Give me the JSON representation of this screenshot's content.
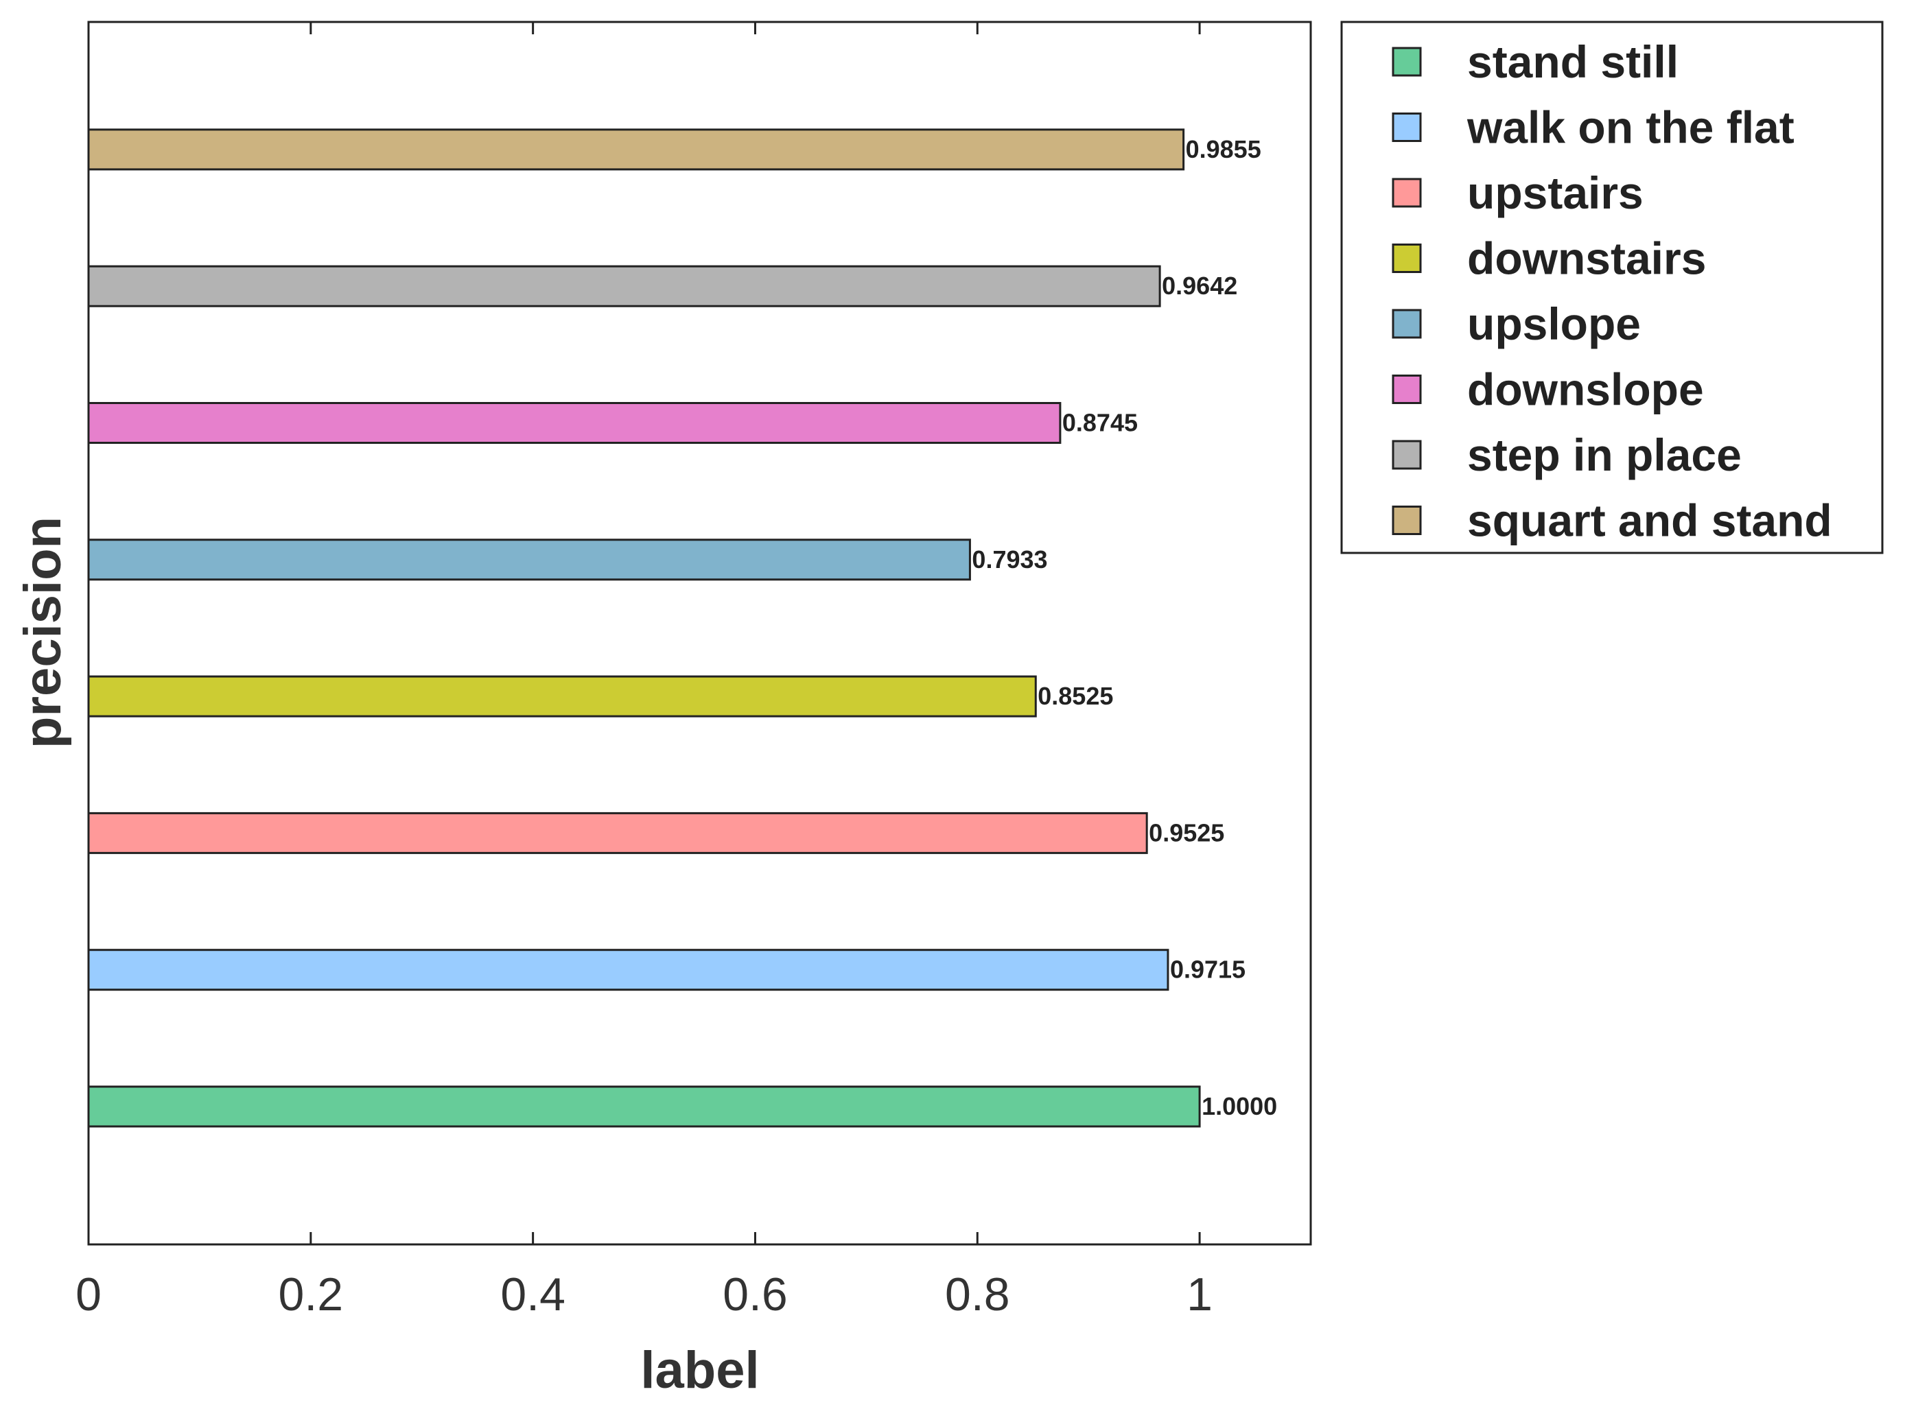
{
  "chart_data": {
    "type": "bar",
    "orientation": "horizontal",
    "title": "",
    "xlabel": "label",
    "ylabel": "precision",
    "xlim": [
      0,
      1.1
    ],
    "xticks": [
      0,
      0.2,
      0.4,
      0.6,
      0.8,
      1
    ],
    "xtick_labels": [
      "0",
      "0.2",
      "0.4",
      "0.6",
      "0.8",
      "1"
    ],
    "grid": false,
    "legend_position": "outside-top-right",
    "categories": [
      "stand still",
      "walk on the flat",
      "upstairs",
      "downstairs",
      "upslope",
      "downslope",
      "step in place",
      "squart and stand"
    ],
    "values": [
      1.0,
      0.9715,
      0.9525,
      0.8525,
      0.7933,
      0.8745,
      0.9642,
      0.9855
    ],
    "value_labels": [
      "1.0000",
      "0.9715",
      "0.9525",
      "0.8525",
      "0.7933",
      "0.8745",
      "0.9642",
      "0.9855"
    ],
    "colors": [
      "#66cc99",
      "#99ccff",
      "#ff9999",
      "#cccc33",
      "#80b3cc",
      "#e680cc",
      "#b3b3b3",
      "#ccb380"
    ]
  }
}
